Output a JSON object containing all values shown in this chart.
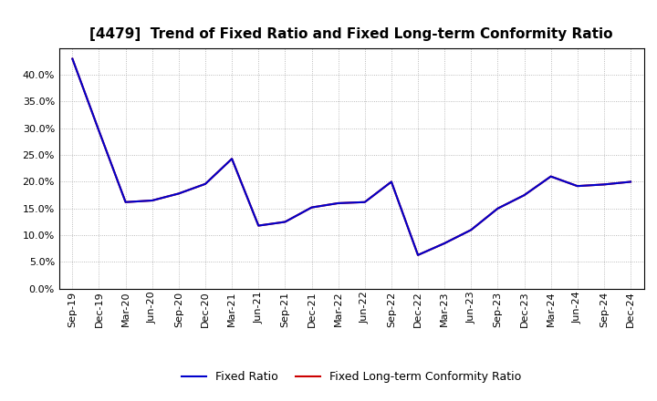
{
  "title": "[4479]  Trend of Fixed Ratio and Fixed Long-term Conformity Ratio",
  "x_labels": [
    "Sep-19",
    "Dec-19",
    "Mar-20",
    "Jun-20",
    "Sep-20",
    "Dec-20",
    "Mar-21",
    "Jun-21",
    "Sep-21",
    "Dec-21",
    "Mar-22",
    "Jun-22",
    "Sep-22",
    "Dec-22",
    "Mar-23",
    "Jun-23",
    "Sep-23",
    "Dec-23",
    "Mar-24",
    "Jun-24",
    "Sep-24",
    "Dec-24"
  ],
  "fixed_ratio": [
    0.43,
    0.295,
    0.162,
    0.165,
    0.178,
    0.196,
    0.243,
    0.118,
    0.125,
    0.152,
    0.16,
    0.162,
    0.2,
    0.063,
    0.085,
    0.11,
    0.15,
    0.175,
    0.21,
    0.192,
    0.195,
    0.2
  ],
  "fixed_lt_ratio": [
    0.43,
    0.295,
    0.162,
    0.165,
    0.178,
    0.196,
    0.243,
    0.118,
    0.125,
    0.152,
    0.16,
    0.162,
    0.2,
    0.063,
    0.085,
    0.11,
    0.15,
    0.175,
    0.21,
    0.192,
    0.195,
    0.2
  ],
  "fixed_ratio_color": "#0000cc",
  "fixed_lt_ratio_color": "#cc0000",
  "background_color": "#ffffff",
  "ylim": [
    0.0,
    0.45
  ],
  "yticks": [
    0.0,
    0.05,
    0.1,
    0.15,
    0.2,
    0.25,
    0.3,
    0.35,
    0.4
  ],
  "legend_fixed_ratio": "Fixed Ratio",
  "legend_fixed_lt_ratio": "Fixed Long-term Conformity Ratio",
  "title_fontsize": 11,
  "tick_fontsize": 8,
  "legend_fontsize": 9
}
